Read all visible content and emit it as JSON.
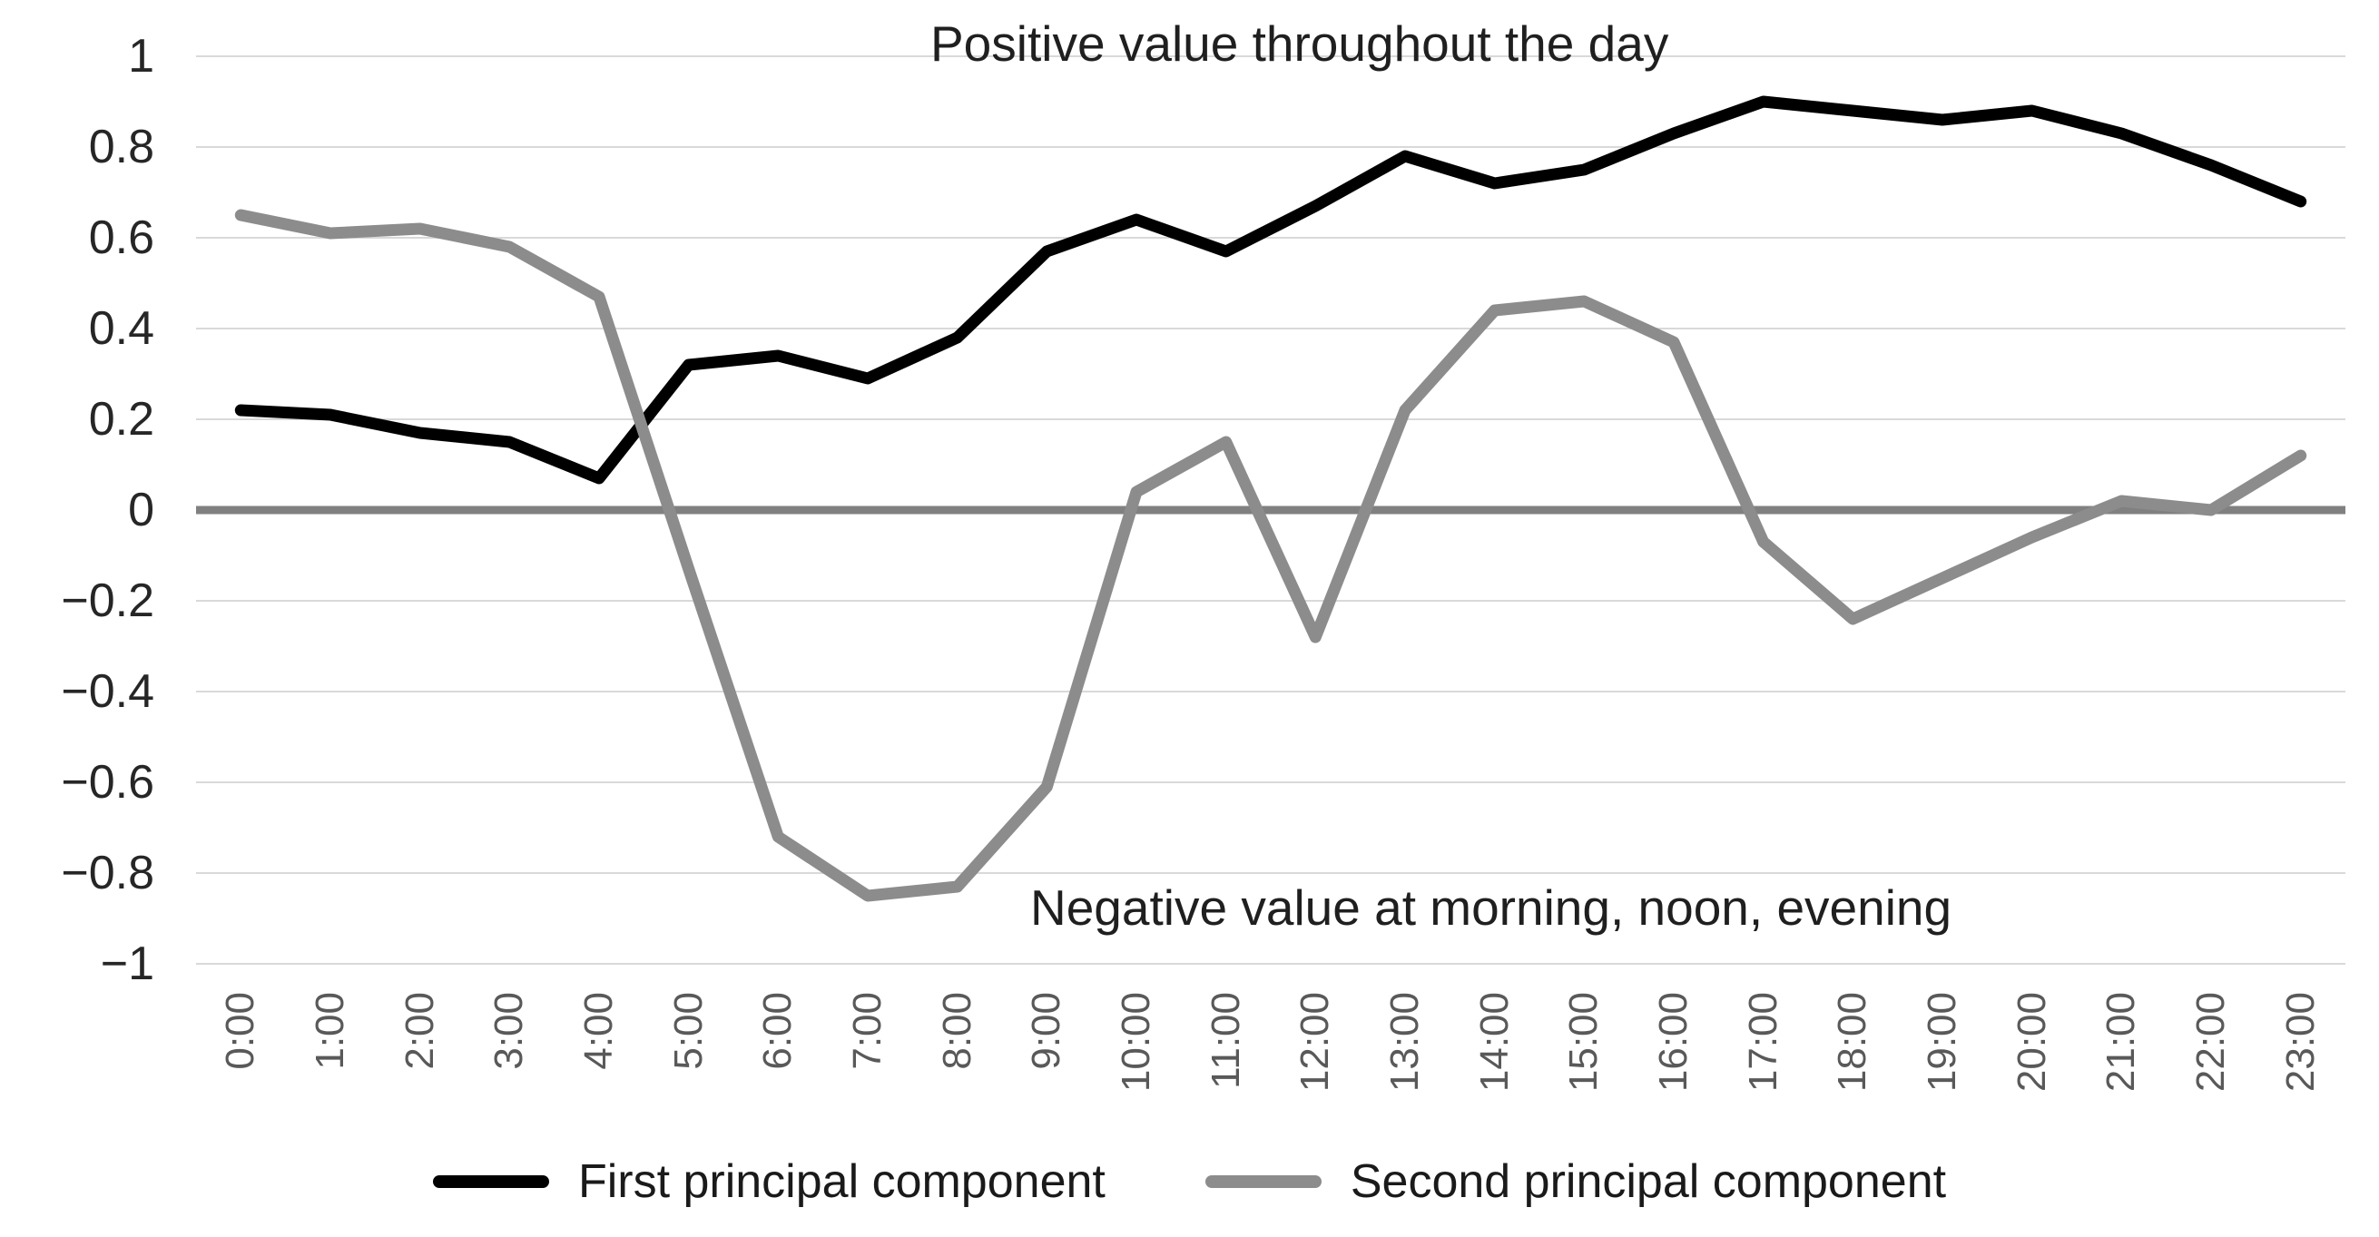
{
  "chart_data": {
    "type": "line",
    "title": "",
    "xlabel": "",
    "ylabel": "",
    "categories": [
      "0:00",
      "1:00",
      "2:00",
      "3:00",
      "4:00",
      "5:00",
      "6:00",
      "7:00",
      "8:00",
      "9:00",
      "10:00",
      "11:00",
      "12:00",
      "13:00",
      "14:00",
      "15:00",
      "16:00",
      "17:00",
      "18:00",
      "19:00",
      "20:00",
      "21:00",
      "22:00",
      "23:00"
    ],
    "series": [
      {
        "name": "First principal component",
        "color": "#000000",
        "values": [
          0.22,
          0.21,
          0.17,
          0.15,
          0.07,
          0.32,
          0.34,
          0.29,
          0.38,
          0.57,
          0.64,
          0.57,
          0.67,
          0.78,
          0.72,
          0.75,
          0.83,
          0.9,
          0.88,
          0.86,
          0.88,
          0.83,
          0.76,
          0.68
        ]
      },
      {
        "name": "Second principal component",
        "color": "#8c8c8c",
        "values": [
          0.65,
          0.61,
          0.62,
          0.58,
          0.47,
          -0.13,
          -0.72,
          -0.85,
          -0.83,
          -0.61,
          0.04,
          0.15,
          -0.28,
          0.22,
          0.44,
          0.46,
          0.37,
          -0.07,
          -0.24,
          -0.15,
          -0.06,
          0.02,
          0.0,
          0.12
        ]
      }
    ],
    "ylim": [
      -1,
      1
    ],
    "ytick_labels": [
      "1",
      "0.8",
      "0.6",
      "0.4",
      "0.2",
      "0",
      "−0.2",
      "−0.4",
      "−0.6",
      "−0.8",
      "−1"
    ],
    "ytick_values": [
      1,
      0.8,
      0.6,
      0.4,
      0.2,
      0,
      -0.2,
      -0.4,
      -0.6,
      -0.8,
      -1
    ],
    "grid": "horizontal",
    "gridline_color": "#d9d9d9",
    "zero_line_color": "#808080",
    "x_label_color": "#595959",
    "y_label_color": "#262626",
    "legend_position": "bottom",
    "annotations": [
      {
        "text": "Positive value throughout the day",
        "position": "top"
      },
      {
        "text": "Negative value at morning, noon, evening",
        "position": "bottom"
      }
    ]
  }
}
